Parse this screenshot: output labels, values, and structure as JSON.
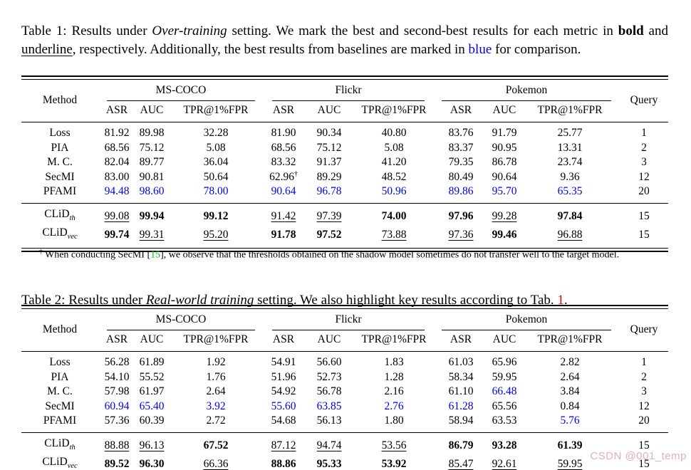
{
  "colors": {
    "baseline_best_blue": "#0000ee",
    "citation_green": "#00bb00",
    "reference_red": "#ee0000",
    "watermark_pink": "#d9b4b0"
  },
  "caption1": {
    "segments": [
      {
        "t": "Table 1: Results under "
      },
      {
        "t": "Over-training",
        "style": "italic"
      },
      {
        "t": " setting. We mark the best and second-best results for each metric in "
      },
      {
        "t": "bold",
        "style": "bold"
      },
      {
        "t": " and "
      },
      {
        "t": "underline",
        "style": "underline"
      },
      {
        "t": ", respectively. Additionally, the best results from baselines are marked in "
      },
      {
        "t": "blue",
        "style": "blue"
      },
      {
        "t": " for comparison."
      }
    ]
  },
  "caption2": {
    "segments": [
      {
        "t": "Table 2: Results under "
      },
      {
        "t": "Real-world training",
        "style": "italic"
      },
      {
        "t": " setting. We also highlight key results according to Tab. "
      },
      {
        "t": "1",
        "style": "red"
      },
      {
        "t": "."
      }
    ]
  },
  "footnote": {
    "segments": [
      {
        "t": "†",
        "style": "sup"
      },
      {
        "t": " When conducting SecMI ["
      },
      {
        "t": "15",
        "style": "green"
      },
      {
        "t": "], we observe that the thresholds obtained on the shadow model sometimes do not transfer well to the target model."
      }
    ]
  },
  "watermark": "CSDN @001_temp",
  "tables": [
    {
      "title": "Table 1 (Over-training)",
      "header": {
        "method": "Method",
        "query": "Query",
        "groups": [
          {
            "label": "MS-COCO",
            "sub": [
              "ASR",
              "AUC",
              "TPR@1%FPR"
            ]
          },
          {
            "label": "Flickr",
            "sub": [
              "ASR",
              "AUC",
              "TPR@1%FPR"
            ]
          },
          {
            "label": "Pokemon",
            "sub": [
              "ASR",
              "AUC",
              "TPR@1%FPR"
            ]
          }
        ]
      },
      "baseline_rows": [
        {
          "method": "Loss",
          "cells": [
            {
              "v": "81.92"
            },
            {
              "v": "89.98"
            },
            {
              "v": "32.28"
            },
            {
              "v": "81.90"
            },
            {
              "v": "90.34"
            },
            {
              "v": "40.80"
            },
            {
              "v": "83.76"
            },
            {
              "v": "91.79"
            },
            {
              "v": "25.77"
            },
            {
              "v": "1"
            }
          ]
        },
        {
          "method": "PIA",
          "cells": [
            {
              "v": "68.56"
            },
            {
              "v": "75.12"
            },
            {
              "v": "5.08"
            },
            {
              "v": "68.56"
            },
            {
              "v": "75.12"
            },
            {
              "v": "5.08"
            },
            {
              "v": "83.37"
            },
            {
              "v": "90.95"
            },
            {
              "v": "13.31"
            },
            {
              "v": "2"
            }
          ]
        },
        {
          "method": "M. C.",
          "cells": [
            {
              "v": "82.04"
            },
            {
              "v": "89.77"
            },
            {
              "v": "36.04"
            },
            {
              "v": "83.32"
            },
            {
              "v": "91.37"
            },
            {
              "v": "41.20"
            },
            {
              "v": "79.35"
            },
            {
              "v": "86.78"
            },
            {
              "v": "23.74"
            },
            {
              "v": "3"
            }
          ]
        },
        {
          "method": "SecMI",
          "cells": [
            {
              "v": "83.00"
            },
            {
              "v": "90.81"
            },
            {
              "v": "50.64"
            },
            {
              "v": "62.96",
              "sup": "†"
            },
            {
              "v": "89.29"
            },
            {
              "v": "48.52"
            },
            {
              "v": "80.49"
            },
            {
              "v": "90.64"
            },
            {
              "v": "9.36"
            },
            {
              "v": "12"
            }
          ]
        },
        {
          "method": "PFAMI",
          "cells": [
            {
              "v": "94.48",
              "s": "blue"
            },
            {
              "v": "98.60",
              "s": "blue"
            },
            {
              "v": "78.00",
              "s": "blue"
            },
            {
              "v": "90.64",
              "s": "blue"
            },
            {
              "v": "96.78",
              "s": "blue"
            },
            {
              "v": "50.96",
              "s": "blue"
            },
            {
              "v": "89.86",
              "s": "blue"
            },
            {
              "v": "95.70",
              "s": "blue"
            },
            {
              "v": "65.35",
              "s": "blue"
            },
            {
              "v": "20"
            }
          ]
        }
      ],
      "clid_rows": [
        {
          "method": "CLiD",
          "sub": "th",
          "cells": [
            {
              "v": "99.08",
              "s": "und"
            },
            {
              "v": "99.94",
              "s": "bold"
            },
            {
              "v": "99.12",
              "s": "bold"
            },
            {
              "v": "91.42",
              "s": "und"
            },
            {
              "v": "97.39",
              "s": "und"
            },
            {
              "v": "74.00",
              "s": "bold"
            },
            {
              "v": "97.96",
              "s": "bold"
            },
            {
              "v": "99.28",
              "s": "und"
            },
            {
              "v": "97.84",
              "s": "bold"
            },
            {
              "v": "15"
            }
          ]
        },
        {
          "method": "CLiD",
          "sub": "vec",
          "cells": [
            {
              "v": "99.74",
              "s": "bold"
            },
            {
              "v": "99.31",
              "s": "und"
            },
            {
              "v": "95.20",
              "s": "und"
            },
            {
              "v": "91.78",
              "s": "bold"
            },
            {
              "v": "97.52",
              "s": "bold"
            },
            {
              "v": "73.88",
              "s": "und"
            },
            {
              "v": "97.36",
              "s": "und"
            },
            {
              "v": "99.46",
              "s": "bold"
            },
            {
              "v": "96.88",
              "s": "und"
            },
            {
              "v": "15"
            }
          ]
        }
      ]
    },
    {
      "title": "Table 2 (Real-world training)",
      "header": {
        "method": "Method",
        "query": "Query",
        "groups": [
          {
            "label": "MS-COCO",
            "sub": [
              "ASR",
              "AUC",
              "TPR@1%FPR"
            ]
          },
          {
            "label": "Flickr",
            "sub": [
              "ASR",
              "AUC",
              "TPR@1%FPR"
            ]
          },
          {
            "label": "Pokemon",
            "sub": [
              "ASR",
              "AUC",
              "TPR@1%FPR"
            ]
          }
        ]
      },
      "baseline_rows": [
        {
          "method": "Loss",
          "cells": [
            {
              "v": "56.28"
            },
            {
              "v": "61.89"
            },
            {
              "v": "1.92"
            },
            {
              "v": "54.91"
            },
            {
              "v": "56.60"
            },
            {
              "v": "1.83"
            },
            {
              "v": "61.03"
            },
            {
              "v": "65.96"
            },
            {
              "v": "2.82"
            },
            {
              "v": "1"
            }
          ]
        },
        {
          "method": "PIA",
          "cells": [
            {
              "v": "54.10"
            },
            {
              "v": "55.52"
            },
            {
              "v": "1.76"
            },
            {
              "v": "51.96"
            },
            {
              "v": "52.73"
            },
            {
              "v": "1.28"
            },
            {
              "v": "58.34"
            },
            {
              "v": "59.95"
            },
            {
              "v": "2.64"
            },
            {
              "v": "2"
            }
          ]
        },
        {
          "method": "M. C.",
          "cells": [
            {
              "v": "57.98"
            },
            {
              "v": "61.97"
            },
            {
              "v": "2.64"
            },
            {
              "v": "54.92"
            },
            {
              "v": "56.78"
            },
            {
              "v": "2.16"
            },
            {
              "v": "61.10"
            },
            {
              "v": "66.48",
              "s": "blue"
            },
            {
              "v": "3.84"
            },
            {
              "v": "3"
            }
          ]
        },
        {
          "method": "SecMI",
          "cells": [
            {
              "v": "60.94",
              "s": "blue"
            },
            {
              "v": "65.40",
              "s": "blue"
            },
            {
              "v": "3.92",
              "s": "blue"
            },
            {
              "v": "55.60",
              "s": "blue"
            },
            {
              "v": "63.85",
              "s": "blue"
            },
            {
              "v": "2.76",
              "s": "blue"
            },
            {
              "v": "61.28",
              "s": "blue"
            },
            {
              "v": "65.56"
            },
            {
              "v": "0.84"
            },
            {
              "v": "12"
            }
          ]
        },
        {
          "method": "PFAMI",
          "cells": [
            {
              "v": "57.36"
            },
            {
              "v": "60.39"
            },
            {
              "v": "2.72"
            },
            {
              "v": "54.68"
            },
            {
              "v": "56.13"
            },
            {
              "v": "1.80"
            },
            {
              "v": "58.94"
            },
            {
              "v": "63.53"
            },
            {
              "v": "5.76",
              "s": "blue"
            },
            {
              "v": "20"
            }
          ]
        }
      ],
      "clid_rows": [
        {
          "method": "CLiD",
          "sub": "th",
          "cells": [
            {
              "v": "88.88",
              "s": "und"
            },
            {
              "v": "96.13",
              "s": "und"
            },
            {
              "v": "67.52",
              "s": "bold"
            },
            {
              "v": "87.12",
              "s": "und"
            },
            {
              "v": "94.74",
              "s": "und"
            },
            {
              "v": "53.56",
              "s": "und"
            },
            {
              "v": "86.79",
              "s": "bold"
            },
            {
              "v": "93.28",
              "s": "bold"
            },
            {
              "v": "61.39",
              "s": "bold"
            },
            {
              "v": "15"
            }
          ]
        },
        {
          "method": "CLiD",
          "sub": "vec",
          "cells": [
            {
              "v": "89.52",
              "s": "bold"
            },
            {
              "v": "96.30",
              "s": "bold"
            },
            {
              "v": "66.36",
              "s": "und"
            },
            {
              "v": "88.86",
              "s": "bold"
            },
            {
              "v": "95.33",
              "s": "bold"
            },
            {
              "v": "53.92",
              "s": "bold"
            },
            {
              "v": "85.47",
              "s": "und"
            },
            {
              "v": "92.61",
              "s": "und"
            },
            {
              "v": "59.95",
              "s": "und"
            },
            {
              "v": "15"
            }
          ]
        }
      ]
    }
  ]
}
